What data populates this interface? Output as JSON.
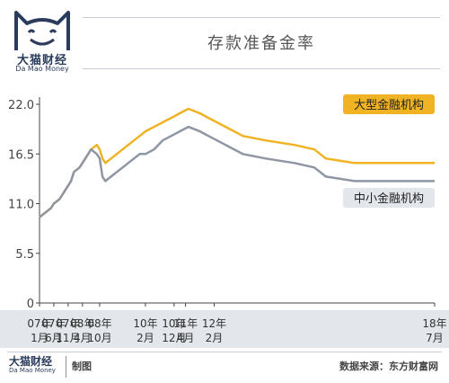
{
  "header": {
    "brand_name": "大猫财经",
    "brand_sub": "Da Mao Money",
    "title": "存款准备金率"
  },
  "footer": {
    "brand_name": "大猫财经",
    "brand_sub": "Da Mao Money",
    "made_label": "制图",
    "source": "数据来源：东方财富网"
  },
  "colors": {
    "large_banks": "#f0b323",
    "small_banks": "#8e95a3",
    "legend_small_bg": "#e3e6ea",
    "axis": "#444444",
    "brand": "#2a3b5c"
  },
  "chart_data": {
    "type": "line",
    "title": "存款准备金率",
    "xlabel": "",
    "ylabel": "",
    "ylim": [
      0,
      22
    ],
    "yticks": [
      "0",
      "5.5",
      "11.0",
      "16.5",
      "22.0"
    ],
    "ytick_values": [
      0,
      5.5,
      11.0,
      16.5,
      22.0
    ],
    "x_range": [
      "2007-01",
      "2018-07"
    ],
    "xtick_labels": [
      {
        "line1": "07年",
        "line2": "1月",
        "date": "2007-01"
      },
      {
        "line1": "07年",
        "line2": "6月",
        "date": "2007-06"
      },
      {
        "line1": "07年",
        "line2": "11月",
        "date": "2007-11"
      },
      {
        "line1": "08年",
        "line2": "4月",
        "date": "2008-04"
      },
      {
        "line1": "08年",
        "line2": "10月",
        "date": "2008-10"
      },
      {
        "line1": "10年",
        "line2": "2月",
        "date": "2010-02"
      },
      {
        "line1": "10年",
        "line2": "12月",
        "date": "2010-12"
      },
      {
        "line1": "11年",
        "line2": "4月",
        "date": "2011-04"
      },
      {
        "line1": "12年",
        "line2": "2月",
        "date": "2012-02"
      },
      {
        "line1": "18年",
        "line2": "7月",
        "date": "2018-07"
      }
    ],
    "grid": false,
    "legend_position": "inline",
    "series": [
      {
        "name": "大型金融机构",
        "color": "#f0b323",
        "points": [
          [
            "2007-01",
            9.5
          ],
          [
            "2007-03",
            10.0
          ],
          [
            "2007-05",
            10.5
          ],
          [
            "2007-06",
            11.0
          ],
          [
            "2007-08",
            11.5
          ],
          [
            "2007-09",
            12.0
          ],
          [
            "2007-10",
            12.5
          ],
          [
            "2007-11",
            13.0
          ],
          [
            "2007-12",
            13.5
          ],
          [
            "2008-01",
            14.5
          ],
          [
            "2008-03",
            15.0
          ],
          [
            "2008-04",
            15.5
          ],
          [
            "2008-05",
            16.0
          ],
          [
            "2008-06",
            16.5
          ],
          [
            "2008-07",
            17.0
          ],
          [
            "2008-09",
            17.5
          ],
          [
            "2008-10",
            17.0
          ],
          [
            "2008-11",
            16.0
          ],
          [
            "2008-12",
            15.5
          ],
          [
            "2009-02",
            16.0
          ],
          [
            "2009-04",
            16.5
          ],
          [
            "2009-06",
            17.0
          ],
          [
            "2009-08",
            17.5
          ],
          [
            "2009-10",
            18.0
          ],
          [
            "2009-12",
            18.5
          ],
          [
            "2010-02",
            19.0
          ],
          [
            "2010-05",
            19.5
          ],
          [
            "2010-08",
            20.0
          ],
          [
            "2010-11",
            20.5
          ],
          [
            "2011-02",
            21.0
          ],
          [
            "2011-05",
            21.5
          ],
          [
            "2011-09",
            21.0
          ],
          [
            "2011-12",
            20.5
          ],
          [
            "2012-03",
            20.0
          ],
          [
            "2012-06",
            19.5
          ],
          [
            "2012-12",
            18.5
          ],
          [
            "2013-08",
            18.0
          ],
          [
            "2014-06",
            17.5
          ],
          [
            "2015-01",
            17.0
          ],
          [
            "2015-05",
            16.0
          ],
          [
            "2016-03",
            15.5
          ],
          [
            "2018-07",
            15.5
          ]
        ]
      },
      {
        "name": "中小金融机构",
        "color": "#8e95a3",
        "points": [
          [
            "2007-01",
            9.5
          ],
          [
            "2007-03",
            10.0
          ],
          [
            "2007-05",
            10.5
          ],
          [
            "2007-06",
            11.0
          ],
          [
            "2007-08",
            11.5
          ],
          [
            "2007-09",
            12.0
          ],
          [
            "2007-10",
            12.5
          ],
          [
            "2007-11",
            13.0
          ],
          [
            "2007-12",
            13.5
          ],
          [
            "2008-01",
            14.5
          ],
          [
            "2008-03",
            15.0
          ],
          [
            "2008-04",
            15.5
          ],
          [
            "2008-05",
            16.0
          ],
          [
            "2008-06",
            16.5
          ],
          [
            "2008-07",
            17.0
          ],
          [
            "2008-09",
            16.5
          ],
          [
            "2008-10",
            16.0
          ],
          [
            "2008-11",
            14.0
          ],
          [
            "2008-12",
            13.5
          ],
          [
            "2009-02",
            14.0
          ],
          [
            "2009-04",
            14.5
          ],
          [
            "2009-06",
            15.0
          ],
          [
            "2009-08",
            15.5
          ],
          [
            "2009-10",
            16.0
          ],
          [
            "2009-12",
            16.5
          ],
          [
            "2010-02",
            16.5
          ],
          [
            "2010-05",
            17.0
          ],
          [
            "2010-08",
            18.0
          ],
          [
            "2010-11",
            18.5
          ],
          [
            "2011-02",
            19.0
          ],
          [
            "2011-05",
            19.5
          ],
          [
            "2011-09",
            19.0
          ],
          [
            "2011-12",
            18.5
          ],
          [
            "2012-03",
            18.0
          ],
          [
            "2012-06",
            17.5
          ],
          [
            "2012-12",
            16.5
          ],
          [
            "2013-08",
            16.0
          ],
          [
            "2014-06",
            15.5
          ],
          [
            "2015-01",
            15.0
          ],
          [
            "2015-05",
            14.0
          ],
          [
            "2016-03",
            13.5
          ],
          [
            "2018-07",
            13.5
          ]
        ]
      }
    ]
  }
}
